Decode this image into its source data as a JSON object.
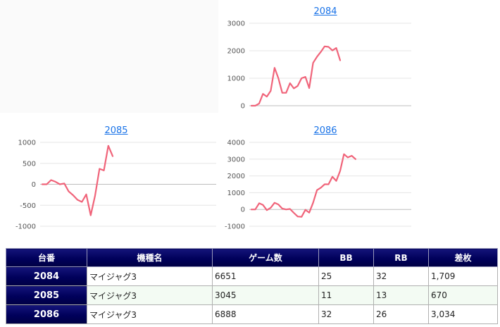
{
  "charts": [
    {
      "id": "2084",
      "title": "2084",
      "y_ticks": [
        "3000",
        "2000",
        "1000",
        "0"
      ],
      "chart_data": {
        "type": "line",
        "title": "2084",
        "ylim": [
          0,
          3000
        ],
        "color": "#f0647a",
        "values": [
          0,
          0,
          80,
          430,
          330,
          540,
          1380,
          1000,
          470,
          470,
          820,
          630,
          720,
          1000,
          1050,
          640,
          1560,
          1780,
          1960,
          2160,
          2140,
          2010,
          2100,
          1650
        ]
      }
    },
    {
      "id": "2085",
      "title": "2085",
      "y_ticks": [
        "1000",
        "500",
        "0",
        "-500",
        "-1000"
      ],
      "chart_data": {
        "type": "line",
        "title": "2085",
        "ylim": [
          -1000,
          1000
        ],
        "color": "#f0647a",
        "values": [
          0,
          0,
          100,
          60,
          0,
          20,
          -170,
          -260,
          -370,
          -420,
          -240,
          -740,
          -270,
          370,
          330,
          920,
          670
        ]
      }
    },
    {
      "id": "2086",
      "title": "2086",
      "y_ticks": [
        "4000",
        "3000",
        "2000",
        "1000",
        "0",
        "-1000"
      ],
      "chart_data": {
        "type": "line",
        "title": "2086",
        "ylim": [
          -1000,
          4000
        ],
        "color": "#f0647a",
        "values": [
          0,
          0,
          370,
          270,
          -40,
          100,
          400,
          300,
          50,
          0,
          30,
          -200,
          -420,
          -440,
          -20,
          -190,
          400,
          1150,
          1300,
          1500,
          1500,
          1950,
          1700,
          2300,
          3300,
          3100,
          3200,
          3000
        ]
      }
    }
  ],
  "table": {
    "headers": [
      "台番",
      "機種名",
      "ゲーム数",
      "BB",
      "RB",
      "差枚"
    ],
    "rows": [
      [
        "2084",
        "マイジャグ3",
        "6651",
        "25",
        "32",
        "1,709"
      ],
      [
        "2085",
        "マイジャグ3",
        "3045",
        "11",
        "13",
        "670"
      ],
      [
        "2086",
        "マイジャグ3",
        "6888",
        "32",
        "26",
        "3,034"
      ]
    ]
  }
}
